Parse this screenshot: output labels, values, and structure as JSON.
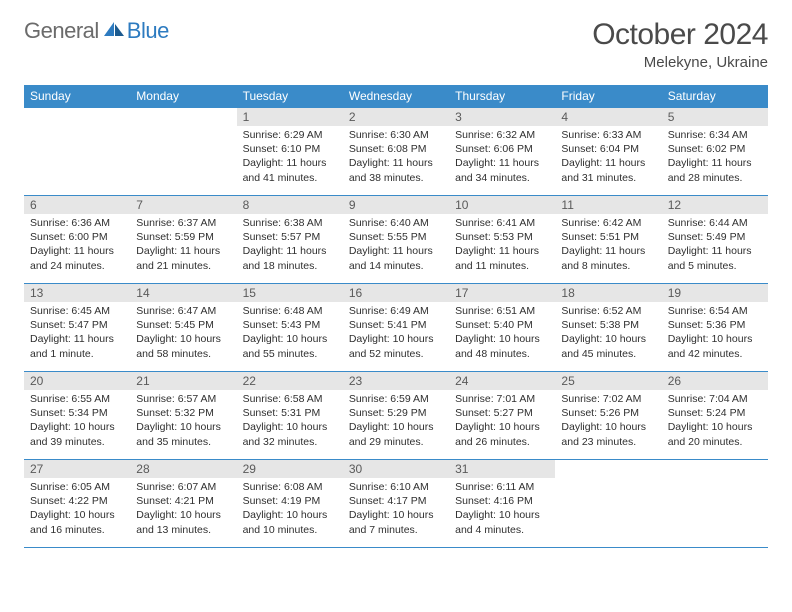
{
  "logo": {
    "general": "General",
    "blue": "Blue"
  },
  "title": "October 2024",
  "location": "Melekyne, Ukraine",
  "colors": {
    "header_bg": "#3a8bc9",
    "header_text": "#ffffff",
    "band_bg": "#e6e6e6",
    "border": "#3a8bc9",
    "logo_gray": "#6b6b6b",
    "logo_blue": "#2d7bc0"
  },
  "day_headers": [
    "Sunday",
    "Monday",
    "Tuesday",
    "Wednesday",
    "Thursday",
    "Friday",
    "Saturday"
  ],
  "weeks": [
    [
      {
        "n": "",
        "lines": []
      },
      {
        "n": "",
        "lines": []
      },
      {
        "n": "1",
        "lines": [
          "Sunrise: 6:29 AM",
          "Sunset: 6:10 PM",
          "Daylight: 11 hours and 41 minutes."
        ]
      },
      {
        "n": "2",
        "lines": [
          "Sunrise: 6:30 AM",
          "Sunset: 6:08 PM",
          "Daylight: 11 hours and 38 minutes."
        ]
      },
      {
        "n": "3",
        "lines": [
          "Sunrise: 6:32 AM",
          "Sunset: 6:06 PM",
          "Daylight: 11 hours and 34 minutes."
        ]
      },
      {
        "n": "4",
        "lines": [
          "Sunrise: 6:33 AM",
          "Sunset: 6:04 PM",
          "Daylight: 11 hours and 31 minutes."
        ]
      },
      {
        "n": "5",
        "lines": [
          "Sunrise: 6:34 AM",
          "Sunset: 6:02 PM",
          "Daylight: 11 hours and 28 minutes."
        ]
      }
    ],
    [
      {
        "n": "6",
        "lines": [
          "Sunrise: 6:36 AM",
          "Sunset: 6:00 PM",
          "Daylight: 11 hours and 24 minutes."
        ]
      },
      {
        "n": "7",
        "lines": [
          "Sunrise: 6:37 AM",
          "Sunset: 5:59 PM",
          "Daylight: 11 hours and 21 minutes."
        ]
      },
      {
        "n": "8",
        "lines": [
          "Sunrise: 6:38 AM",
          "Sunset: 5:57 PM",
          "Daylight: 11 hours and 18 minutes."
        ]
      },
      {
        "n": "9",
        "lines": [
          "Sunrise: 6:40 AM",
          "Sunset: 5:55 PM",
          "Daylight: 11 hours and 14 minutes."
        ]
      },
      {
        "n": "10",
        "lines": [
          "Sunrise: 6:41 AM",
          "Sunset: 5:53 PM",
          "Daylight: 11 hours and 11 minutes."
        ]
      },
      {
        "n": "11",
        "lines": [
          "Sunrise: 6:42 AM",
          "Sunset: 5:51 PM",
          "Daylight: 11 hours and 8 minutes."
        ]
      },
      {
        "n": "12",
        "lines": [
          "Sunrise: 6:44 AM",
          "Sunset: 5:49 PM",
          "Daylight: 11 hours and 5 minutes."
        ]
      }
    ],
    [
      {
        "n": "13",
        "lines": [
          "Sunrise: 6:45 AM",
          "Sunset: 5:47 PM",
          "Daylight: 11 hours and 1 minute."
        ]
      },
      {
        "n": "14",
        "lines": [
          "Sunrise: 6:47 AM",
          "Sunset: 5:45 PM",
          "Daylight: 10 hours and 58 minutes."
        ]
      },
      {
        "n": "15",
        "lines": [
          "Sunrise: 6:48 AM",
          "Sunset: 5:43 PM",
          "Daylight: 10 hours and 55 minutes."
        ]
      },
      {
        "n": "16",
        "lines": [
          "Sunrise: 6:49 AM",
          "Sunset: 5:41 PM",
          "Daylight: 10 hours and 52 minutes."
        ]
      },
      {
        "n": "17",
        "lines": [
          "Sunrise: 6:51 AM",
          "Sunset: 5:40 PM",
          "Daylight: 10 hours and 48 minutes."
        ]
      },
      {
        "n": "18",
        "lines": [
          "Sunrise: 6:52 AM",
          "Sunset: 5:38 PM",
          "Daylight: 10 hours and 45 minutes."
        ]
      },
      {
        "n": "19",
        "lines": [
          "Sunrise: 6:54 AM",
          "Sunset: 5:36 PM",
          "Daylight: 10 hours and 42 minutes."
        ]
      }
    ],
    [
      {
        "n": "20",
        "lines": [
          "Sunrise: 6:55 AM",
          "Sunset: 5:34 PM",
          "Daylight: 10 hours and 39 minutes."
        ]
      },
      {
        "n": "21",
        "lines": [
          "Sunrise: 6:57 AM",
          "Sunset: 5:32 PM",
          "Daylight: 10 hours and 35 minutes."
        ]
      },
      {
        "n": "22",
        "lines": [
          "Sunrise: 6:58 AM",
          "Sunset: 5:31 PM",
          "Daylight: 10 hours and 32 minutes."
        ]
      },
      {
        "n": "23",
        "lines": [
          "Sunrise: 6:59 AM",
          "Sunset: 5:29 PM",
          "Daylight: 10 hours and 29 minutes."
        ]
      },
      {
        "n": "24",
        "lines": [
          "Sunrise: 7:01 AM",
          "Sunset: 5:27 PM",
          "Daylight: 10 hours and 26 minutes."
        ]
      },
      {
        "n": "25",
        "lines": [
          "Sunrise: 7:02 AM",
          "Sunset: 5:26 PM",
          "Daylight: 10 hours and 23 minutes."
        ]
      },
      {
        "n": "26",
        "lines": [
          "Sunrise: 7:04 AM",
          "Sunset: 5:24 PM",
          "Daylight: 10 hours and 20 minutes."
        ]
      }
    ],
    [
      {
        "n": "27",
        "lines": [
          "Sunrise: 6:05 AM",
          "Sunset: 4:22 PM",
          "Daylight: 10 hours and 16 minutes."
        ]
      },
      {
        "n": "28",
        "lines": [
          "Sunrise: 6:07 AM",
          "Sunset: 4:21 PM",
          "Daylight: 10 hours and 13 minutes."
        ]
      },
      {
        "n": "29",
        "lines": [
          "Sunrise: 6:08 AM",
          "Sunset: 4:19 PM",
          "Daylight: 10 hours and 10 minutes."
        ]
      },
      {
        "n": "30",
        "lines": [
          "Sunrise: 6:10 AM",
          "Sunset: 4:17 PM",
          "Daylight: 10 hours and 7 minutes."
        ]
      },
      {
        "n": "31",
        "lines": [
          "Sunrise: 6:11 AM",
          "Sunset: 4:16 PM",
          "Daylight: 10 hours and 4 minutes."
        ]
      },
      {
        "n": "",
        "lines": []
      },
      {
        "n": "",
        "lines": []
      }
    ]
  ]
}
